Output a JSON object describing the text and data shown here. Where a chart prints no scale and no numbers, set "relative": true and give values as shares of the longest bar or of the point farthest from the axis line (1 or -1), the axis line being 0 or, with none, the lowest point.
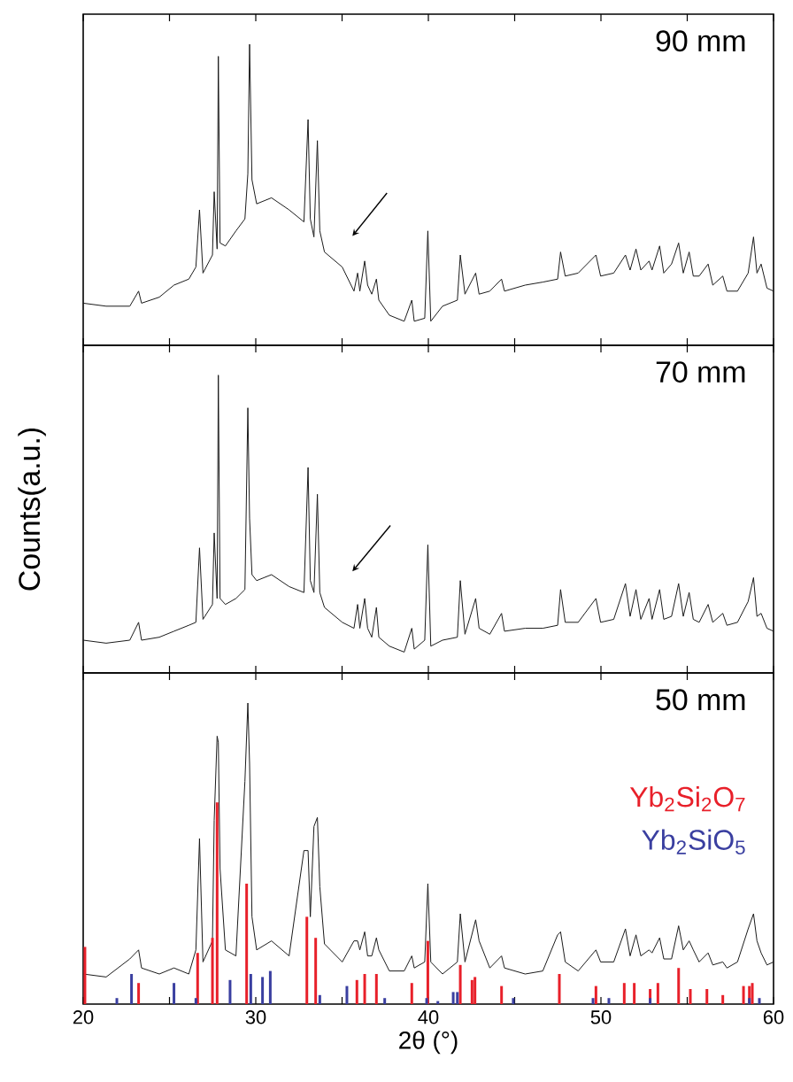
{
  "chart_data": [
    {
      "type": "line",
      "title": "90 mm",
      "relative": true,
      "xlim": [
        20,
        60
      ],
      "xticks": [
        20,
        {
          "value": 25,
          "label": null
        },
        30,
        {
          "value": 35,
          "label": null
        },
        40,
        {
          "value": 45,
          "label": null
        },
        50,
        {
          "value": 55,
          "label": null
        },
        60
      ],
      "tick_labels": false,
      "series": [
        {
          "color": "#1a1a1a",
          "x": [
            20.0,
            21.33,
            22.7,
            23.21,
            23.38,
            24.41,
            25.26,
            26.12,
            26.53,
            26.74,
            26.94,
            27.49,
            27.59,
            27.76,
            27.83,
            27.93,
            28.24,
            28.85,
            29.37,
            29.54,
            29.64,
            29.78,
            30.05,
            30.91,
            31.93,
            32.79,
            33.03,
            33.16,
            33.37,
            33.57,
            33.71,
            33.98,
            35.01,
            35.69,
            35.9,
            36.03,
            36.31,
            36.48,
            36.72,
            36.99,
            37.13,
            37.74,
            38.6,
            39.04,
            39.18,
            39.79,
            39.97,
            40.14,
            40.82,
            41.68,
            41.85,
            42.12,
            42.74,
            42.94,
            43.56,
            44.24,
            44.41,
            45.61,
            46.63,
            47.49,
            47.66,
            47.93,
            48.68,
            49.71,
            49.98,
            50.74,
            51.42,
            51.69,
            52.03,
            52.31,
            52.79,
            52.96,
            53.4,
            53.64,
            54.09,
            54.5,
            54.77,
            55.11,
            55.35,
            55.69,
            56.21,
            56.48,
            57.06,
            57.3,
            57.91,
            58.53,
            58.84,
            59.04,
            59.28,
            59.62,
            60.0
          ],
          "values": [
            0.14,
            0.13,
            0.13,
            0.18,
            0.14,
            0.16,
            0.2,
            0.22,
            0.26,
            0.45,
            0.24,
            0.3,
            0.51,
            0.32,
            0.96,
            0.34,
            0.33,
            0.38,
            0.42,
            0.57,
            1.0,
            0.55,
            0.47,
            0.49,
            0.45,
            0.41,
            0.75,
            0.42,
            0.36,
            0.68,
            0.38,
            0.31,
            0.26,
            0.18,
            0.24,
            0.18,
            0.28,
            0.2,
            0.17,
            0.22,
            0.15,
            0.1,
            0.08,
            0.15,
            0.08,
            0.09,
            0.38,
            0.08,
            0.13,
            0.15,
            0.3,
            0.17,
            0.24,
            0.17,
            0.18,
            0.22,
            0.18,
            0.2,
            0.21,
            0.22,
            0.31,
            0.23,
            0.24,
            0.3,
            0.23,
            0.24,
            0.3,
            0.25,
            0.32,
            0.25,
            0.28,
            0.25,
            0.33,
            0.24,
            0.27,
            0.34,
            0.24,
            0.31,
            0.23,
            0.23,
            0.27,
            0.2,
            0.23,
            0.18,
            0.18,
            0.24,
            0.36,
            0.24,
            0.27,
            0.19,
            0.18
          ]
        }
      ]
    },
    {
      "type": "line",
      "title": "70 mm",
      "ylabel": "Counts(a.u.)",
      "relative": true,
      "xlim": [
        20,
        60
      ],
      "xticks": [
        20,
        {
          "value": 25,
          "label": null
        },
        30,
        {
          "value": 35,
          "label": null
        },
        40,
        {
          "value": 45,
          "label": null
        },
        50,
        {
          "value": 55,
          "label": null
        },
        60
      ],
      "tick_labels": false,
      "series": [
        {
          "color": "#1a1a1a",
          "x": [
            20.0,
            21.33,
            22.7,
            23.21,
            23.38,
            24.41,
            25.26,
            26.12,
            26.53,
            26.74,
            26.94,
            27.49,
            27.59,
            27.76,
            27.83,
            27.93,
            28.24,
            28.85,
            29.37,
            29.54,
            29.64,
            29.78,
            30.05,
            30.91,
            31.93,
            32.79,
            33.03,
            33.16,
            33.37,
            33.57,
            33.71,
            33.98,
            35.01,
            35.69,
            35.9,
            36.03,
            36.31,
            36.48,
            36.72,
            36.99,
            37.13,
            37.74,
            38.6,
            39.04,
            39.18,
            39.79,
            39.97,
            40.14,
            40.82,
            41.68,
            41.85,
            42.12,
            42.74,
            42.94,
            43.56,
            44.24,
            44.41,
            45.61,
            46.63,
            47.49,
            47.66,
            47.93,
            48.68,
            49.71,
            49.98,
            50.74,
            51.42,
            51.69,
            52.03,
            52.31,
            52.79,
            52.96,
            53.4,
            53.64,
            54.09,
            54.5,
            54.77,
            55.11,
            55.35,
            55.69,
            56.21,
            56.48,
            57.06,
            57.3,
            57.91,
            58.53,
            58.84,
            59.04,
            59.28,
            59.62,
            60.0
          ],
          "values": [
            0.11,
            0.1,
            0.11,
            0.17,
            0.11,
            0.12,
            0.14,
            0.16,
            0.17,
            0.42,
            0.18,
            0.23,
            0.47,
            0.25,
            1.0,
            0.25,
            0.23,
            0.25,
            0.28,
            0.89,
            0.52,
            0.33,
            0.31,
            0.33,
            0.29,
            0.27,
            0.69,
            0.31,
            0.27,
            0.6,
            0.27,
            0.22,
            0.17,
            0.15,
            0.23,
            0.15,
            0.25,
            0.15,
            0.12,
            0.22,
            0.12,
            0.09,
            0.07,
            0.15,
            0.08,
            0.11,
            0.43,
            0.09,
            0.11,
            0.12,
            0.31,
            0.13,
            0.25,
            0.15,
            0.13,
            0.2,
            0.14,
            0.15,
            0.15,
            0.16,
            0.28,
            0.17,
            0.17,
            0.25,
            0.17,
            0.18,
            0.3,
            0.19,
            0.28,
            0.18,
            0.25,
            0.18,
            0.28,
            0.18,
            0.19,
            0.3,
            0.19,
            0.27,
            0.18,
            0.17,
            0.23,
            0.17,
            0.2,
            0.16,
            0.17,
            0.24,
            0.32,
            0.19,
            0.2,
            0.15,
            0.14
          ]
        }
      ]
    },
    {
      "type": "line",
      "title": "50 mm",
      "xlabel": "2θ (°)",
      "relative": true,
      "xlim": [
        20,
        60
      ],
      "xticks": [
        20,
        {
          "value": 25,
          "label": null
        },
        30,
        {
          "value": 35,
          "label": null
        },
        40,
        {
          "value": 45,
          "label": null
        },
        50,
        {
          "value": 55,
          "label": null
        },
        60
      ],
      "tick_labels": "x",
      "legend": "right",
      "series": [
        {
          "color": "#1a1a1a",
          "x": [
            20.0,
            21.33,
            22.7,
            23.21,
            23.38,
            24.41,
            25.26,
            26.12,
            26.53,
            26.74,
            26.94,
            27.49,
            27.59,
            27.76,
            27.83,
            27.93,
            28.24,
            28.85,
            29.37,
            29.54,
            29.64,
            29.78,
            30.05,
            30.91,
            31.93,
            32.79,
            33.03,
            33.16,
            33.37,
            33.57,
            33.71,
            33.98,
            35.01,
            35.69,
            35.9,
            36.03,
            36.31,
            36.48,
            36.72,
            36.99,
            37.13,
            37.74,
            38.6,
            39.04,
            39.18,
            39.79,
            39.97,
            40.14,
            40.82,
            41.68,
            41.85,
            42.12,
            42.74,
            42.94,
            43.56,
            44.24,
            44.41,
            45.61,
            46.63,
            47.49,
            47.66,
            47.93,
            48.68,
            49.71,
            49.98,
            50.74,
            51.42,
            51.69,
            52.03,
            52.31,
            52.79,
            52.96,
            53.4,
            53.64,
            54.09,
            54.5,
            54.77,
            55.11,
            55.35,
            55.69,
            56.21,
            56.48,
            57.06,
            57.3,
            57.91,
            58.53,
            58.84,
            59.04,
            59.28,
            59.62,
            60.0
          ],
          "values": [
            0.1,
            0.09,
            0.15,
            0.18,
            0.12,
            0.1,
            0.12,
            0.1,
            0.18,
            0.55,
            0.14,
            0.21,
            0.61,
            0.89,
            0.87,
            0.45,
            0.18,
            0.16,
            0.74,
            1.0,
            0.8,
            0.29,
            0.18,
            0.21,
            0.16,
            0.51,
            0.51,
            0.29,
            0.59,
            0.62,
            0.39,
            0.2,
            0.14,
            0.21,
            0.21,
            0.18,
            0.24,
            0.16,
            0.16,
            0.22,
            0.18,
            0.11,
            0.11,
            0.16,
            0.12,
            0.14,
            0.4,
            0.14,
            0.1,
            0.14,
            0.3,
            0.14,
            0.28,
            0.21,
            0.12,
            0.16,
            0.12,
            0.1,
            0.11,
            0.23,
            0.24,
            0.14,
            0.11,
            0.18,
            0.14,
            0.14,
            0.25,
            0.16,
            0.23,
            0.16,
            0.18,
            0.17,
            0.22,
            0.15,
            0.15,
            0.26,
            0.18,
            0.21,
            0.18,
            0.14,
            0.17,
            0.13,
            0.14,
            0.12,
            0.14,
            0.25,
            0.3,
            0.21,
            0.17,
            0.13,
            0.14
          ]
        },
        {
          "type": "bar",
          "name": "Yb$_{2}$Si$_{2}$O$_{7}$",
          "color": "#e8202a",
          "x": [
            20.1,
            23.21,
            26.63,
            27.49,
            27.76,
            29.47,
            32.96,
            33.47,
            35.86,
            36.31,
            36.99,
            39.04,
            39.97,
            41.85,
            42.53,
            42.7,
            44.24,
            47.59,
            49.71,
            51.35,
            51.93,
            52.85,
            53.3,
            54.5,
            55.18,
            56.14,
            57.06,
            58.26,
            58.6,
            58.77
          ],
          "values": [
            0.19,
            0.07,
            0.17,
            0.22,
            0.67,
            0.4,
            0.29,
            0.22,
            0.08,
            0.1,
            0.1,
            0.07,
            0.21,
            0.13,
            0.08,
            0.09,
            0.06,
            0.1,
            0.06,
            0.07,
            0.07,
            0.05,
            0.07,
            0.12,
            0.05,
            0.05,
            0.03,
            0.06,
            0.06,
            0.07
          ]
        },
        {
          "type": "bar",
          "name": "Yb$_{2}$SiO$_{5}$",
          "color": "#3a3fa0",
          "x": [
            21.95,
            22.8,
            25.26,
            26.53,
            28.51,
            29.71,
            30.39,
            30.84,
            33.71,
            35.28,
            37.47,
            39.9,
            40.55,
            41.44,
            41.68,
            44.92,
            49.54,
            50.46,
            52.85,
            58.6,
            59.18
          ],
          "values": [
            0.02,
            0.1,
            0.07,
            0.02,
            0.08,
            0.1,
            0.09,
            0.11,
            0.03,
            0.06,
            0.02,
            0.02,
            0.01,
            0.04,
            0.04,
            0.02,
            0.02,
            0.02,
            0.02,
            0.02,
            0.02
          ]
        }
      ]
    }
  ]
}
